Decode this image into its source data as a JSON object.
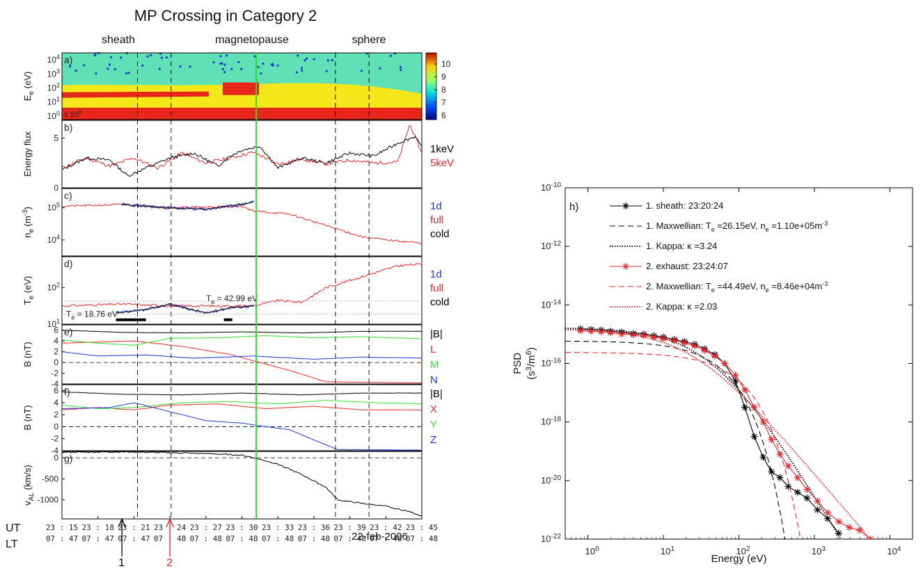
{
  "left_panel": {
    "title": "MP Crossing in Category 2",
    "regions": [
      "sheath",
      "magnetopause",
      "sphere"
    ],
    "row_labels": {
      "ut": "UT",
      "lt": "LT"
    },
    "ut_ticks": [
      "23 : 15",
      "23 : 18",
      "23 : 21",
      "23 : 24",
      "23 : 27",
      "23 : 30",
      "23 : 33",
      "23 : 36",
      "23 : 39",
      "23 : 42",
      "23 : 45"
    ],
    "lt_ticks": [
      "07 : 47",
      "07 : 47",
      "07 : 47",
      "07 : 48",
      "07 : 48",
      "07 : 48",
      "07 : 48",
      "07 : 48",
      "07 : 48",
      "07 : 48",
      "07 : 48"
    ],
    "date": "22-feb-2006",
    "arrows": [
      {
        "label": "1",
        "time_min": 20.0,
        "color": "#000000"
      },
      {
        "label": "2",
        "time_min": 24.0,
        "color": "#e8262b"
      }
    ],
    "time_range_min": [
      15,
      45
    ],
    "event_times_min": {
      "dashed": [
        21.3,
        24.1,
        37.8,
        40.6
      ],
      "magnetopause": 31.2
    },
    "colors": {
      "black": "#000000",
      "red": "#e8262b",
      "green": "#33dd33",
      "blue": "#2233dd",
      "mp_line": "#22e022"
    },
    "panels": [
      {
        "tag": "a)",
        "ylabel": "E",
        "ylabel_sub": "e",
        "ylabel_unit": "(eV)",
        "yticks": [
          {
            "base": "10",
            "exp": "4",
            "log": 4
          },
          {
            "base": "10",
            "exp": "3",
            "log": 3
          },
          {
            "base": "10",
            "exp": "2",
            "log": 2
          },
          {
            "base": "10",
            "exp": "1",
            "log": 1
          },
          {
            "base": "10",
            "exp": "0",
            "log": 0
          }
        ],
        "inset_text": "x 10",
        "inset_exp": "8",
        "colorbar_ticks": [
          "10",
          "9",
          "8",
          "7",
          "6"
        ]
      },
      {
        "tag": "b)",
        "ylabel": "Energy flux",
        "yticks": [
          "5",
          "0"
        ],
        "legend": [
          "1keV",
          "5keV"
        ]
      },
      {
        "tag": "c)",
        "ylabel": "n",
        "ylabel_sub": "e",
        "ylabel_unit": "(m",
        "ylabel_unit_exp": "-3",
        "ylabel_unit_close": ")",
        "yticks": [
          {
            "base": "10",
            "exp": "5",
            "log": 5
          },
          {
            "base": "10",
            "exp": "4",
            "log": 4
          }
        ],
        "legend": [
          "1d",
          "full",
          "cold"
        ]
      },
      {
        "tag": "d)",
        "ylabel": "T",
        "ylabel_sub": "e",
        "ylabel_unit": "(eV)",
        "yticks": [
          {
            "base": "10",
            "exp": "2",
            "log": 2
          },
          {
            "base": "10",
            "exp": "1",
            "log": 1
          }
        ],
        "legend": [
          "1d",
          "full",
          "cold"
        ],
        "annotations": [
          {
            "prefix": "T",
            "sub": "e",
            "text": " = 18.76 eV",
            "value": 18.76
          },
          {
            "prefix": "T",
            "sub": "e",
            "text": " = 42.99 eV",
            "value": 42.99
          }
        ]
      },
      {
        "tag": "e)",
        "ylabel": "B (nT)",
        "yticks": [
          "6",
          "4",
          "2",
          "0",
          "-2",
          "-4"
        ],
        "legend": [
          "|B|",
          "L",
          "M",
          "N"
        ]
      },
      {
        "tag": "f)",
        "ylabel": "B (nT)",
        "yticks": [
          "6",
          "4",
          "2",
          "0",
          "-2",
          "-4"
        ],
        "legend": [
          "|B|",
          "X",
          "Y",
          "Z"
        ]
      },
      {
        "tag": "g)",
        "ylabel": "v",
        "ylabel_sub": "AL",
        "ylabel_unit": " (km/s)",
        "yticks": [
          "0",
          "-500",
          "-1000"
        ]
      }
    ]
  },
  "chart_data": {
    "type": "line",
    "tag": "h)",
    "xlabel": "Energy (eV)",
    "ylabel": "PSD",
    "ylabel_unit": "(s",
    "ylabel_unit_exp": "3",
    "ylabel_unit_mid": "/m",
    "ylabel_unit_exp2": "6",
    "ylabel_unit_close": ")",
    "x_scale": "log",
    "y_scale": "log",
    "xlim": [
      0.5,
      20000
    ],
    "ylim": [
      1e-22,
      1e-10
    ],
    "x_ticks": [
      {
        "base": "10",
        "exp": "0",
        "value": 1
      },
      {
        "base": "10",
        "exp": "1",
        "value": 10
      },
      {
        "base": "10",
        "exp": "2",
        "value": 100
      },
      {
        "base": "10",
        "exp": "3",
        "value": 1000
      },
      {
        "base": "10",
        "exp": "4",
        "value": 10000
      }
    ],
    "y_ticks": [
      {
        "base": "10",
        "exp": "-10",
        "value": -10
      },
      {
        "base": "10",
        "exp": "-12",
        "value": -12
      },
      {
        "base": "10",
        "exp": "-14",
        "value": -14
      },
      {
        "base": "10",
        "exp": "-16",
        "value": -16
      },
      {
        "base": "10",
        "exp": "-18",
        "value": -18
      },
      {
        "base": "10",
        "exp": "-20",
        "value": -20
      },
      {
        "base": "10",
        "exp": "-22",
        "value": -22
      }
    ],
    "series": [
      {
        "name": "1. sheath: 23:20:24",
        "legend": [
          {
            "t": "1. sheath: 23:20:24"
          }
        ],
        "color": "#000000",
        "style": "solid-star",
        "x": [
          0.8,
          1.1,
          1.5,
          2,
          2.8,
          4,
          5.5,
          7.5,
          10,
          14,
          19,
          26,
          35,
          48,
          65,
          90,
          120,
          160,
          210,
          270,
          350,
          450,
          600,
          800,
          1100,
          1500,
          2100
        ],
        "y": [
          -14.82,
          -14.84,
          -14.86,
          -14.9,
          -14.93,
          -14.98,
          -15.0,
          -15.05,
          -15.1,
          -15.18,
          -15.25,
          -15.35,
          -15.5,
          -15.7,
          -16.0,
          -16.6,
          -17.5,
          -18.5,
          -19.2,
          -19.7,
          -19.9,
          -20.2,
          -20.4,
          -20.6,
          -21.0,
          -21.3,
          -21.8
        ]
      },
      {
        "name": "1. Maxwellian: Te =26.15eV, ne =1.10e+05m-3",
        "legend": [
          {
            "t": "1. Maxwellian: T"
          },
          {
            "sub": "e"
          },
          {
            "t": " =26.15eV, n"
          },
          {
            "sub": "e"
          },
          {
            "t": " =1.10e+05m"
          },
          {
            "sup": "-3"
          }
        ],
        "color": "#000000",
        "style": "dashed",
        "T": 26.15,
        "amp_log": -15.23,
        "model": "maxwellian"
      },
      {
        "name": "1. Kappa: κ =3.24",
        "legend": [
          {
            "t": "1. Kappa: κ =3.24"
          }
        ],
        "color": "#000000",
        "style": "dotted",
        "T": 26.15,
        "kappa": 3.24,
        "amp_log": -14.78,
        "model": "kappa"
      },
      {
        "name": "2. exhaust: 23:24:07",
        "legend": [
          {
            "t": "2. exhaust: 23:24:07"
          }
        ],
        "color": "#e8262b",
        "style": "solid-star",
        "x": [
          0.8,
          1.1,
          1.5,
          2,
          2.8,
          4,
          5.5,
          7.5,
          10,
          14,
          19,
          26,
          35,
          48,
          65,
          90,
          120,
          160,
          210,
          270,
          350,
          450,
          600,
          800,
          1100,
          1500,
          2100,
          2900,
          4000,
          5500,
          7500
        ],
        "y": [
          -14.88,
          -14.9,
          -14.92,
          -14.95,
          -15.0,
          -15.02,
          -15.05,
          -15.1,
          -15.15,
          -15.22,
          -15.3,
          -15.4,
          -15.55,
          -15.75,
          -16.0,
          -16.4,
          -16.9,
          -17.5,
          -18.0,
          -18.6,
          -19.1,
          -19.5,
          -19.9,
          -20.3,
          -20.7,
          -21.1,
          -21.4,
          -21.6,
          -21.7,
          -22.0,
          -22.1
        ]
      },
      {
        "name": "2. Maxwellian: Te =44.49eV, ne =8.46e+04m-3",
        "legend": [
          {
            "t": "2. Maxwellian: T"
          },
          {
            "sub": "e"
          },
          {
            "t": " =44.49eV, n"
          },
          {
            "sub": "e"
          },
          {
            "t": " =8.46e+04m"
          },
          {
            "sup": "-3"
          }
        ],
        "color": "#e8262b",
        "style": "dashed",
        "T": 44.49,
        "amp_log": -15.62,
        "model": "maxwellian"
      },
      {
        "name": "2. Kappa: κ =2.03",
        "legend": [
          {
            "t": "2. Kappa: κ =2.03"
          }
        ],
        "color": "#e8262b",
        "style": "dotted",
        "T": 44.49,
        "kappa": 2.03,
        "amp_log": -14.82,
        "model": "kappa"
      }
    ]
  }
}
